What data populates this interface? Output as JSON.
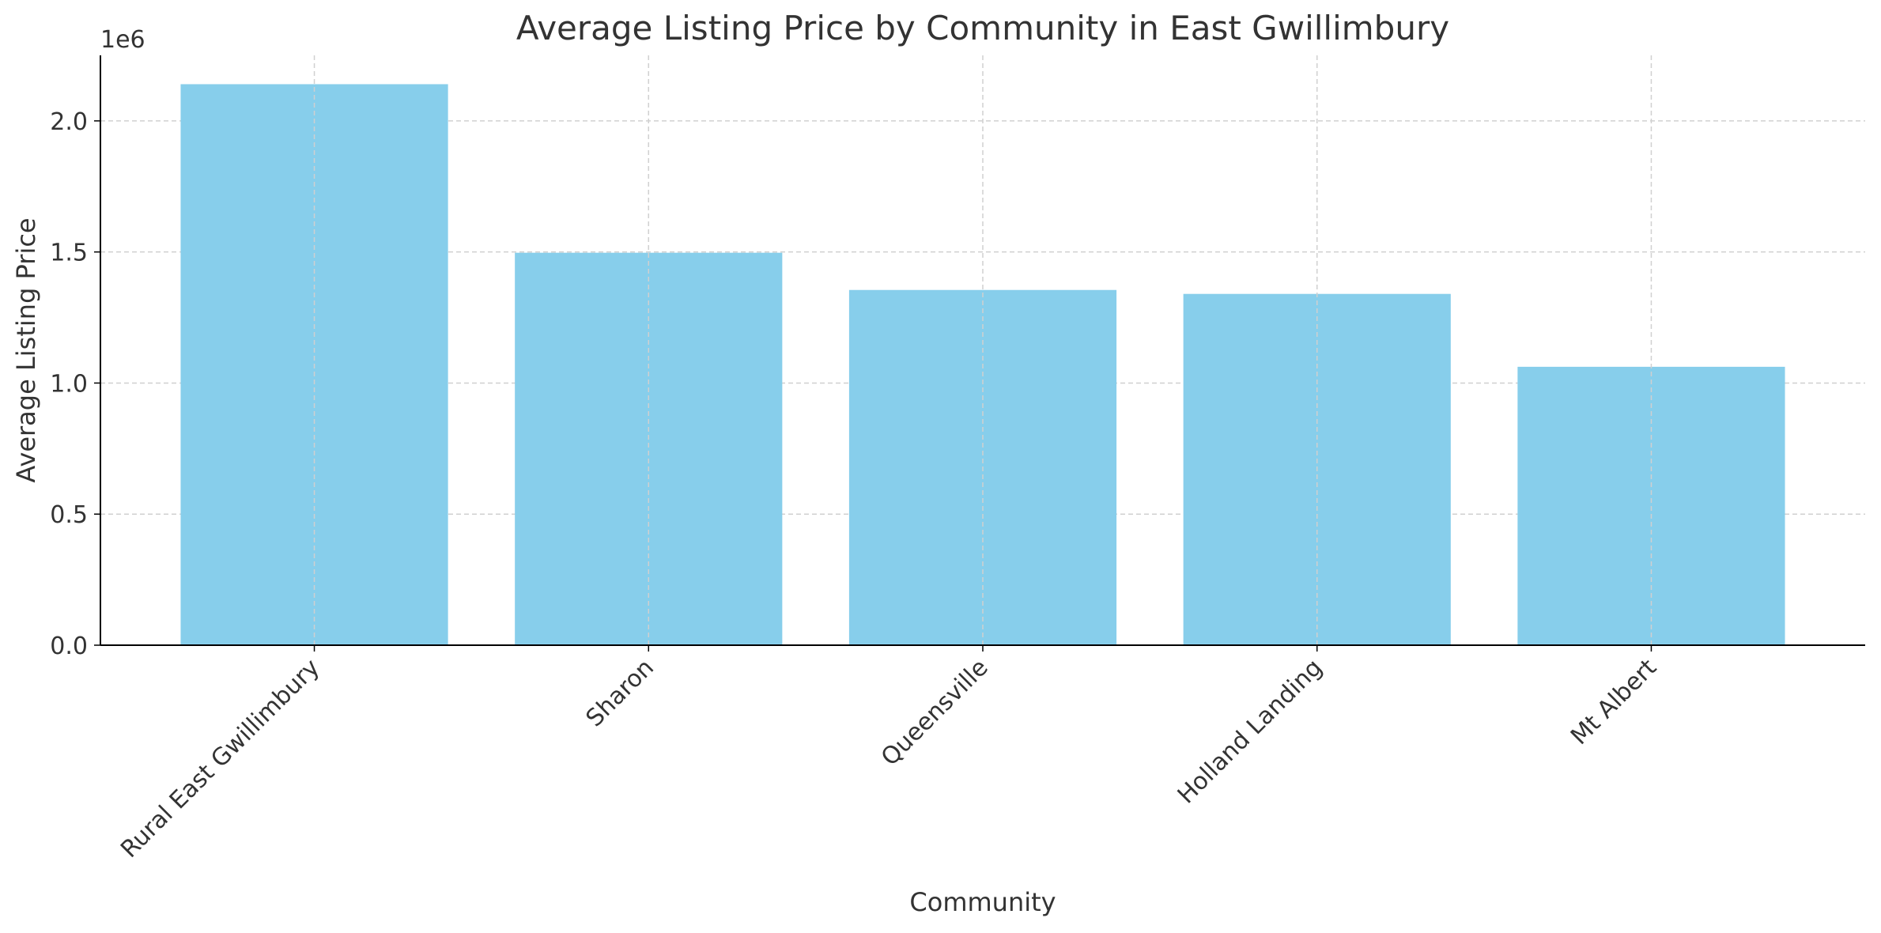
{
  "chart_data": {
    "type": "bar",
    "title": "Average Listing Price by Community in East Gwillimbury",
    "x_label": "Community",
    "y_label": "Average Listing Price",
    "y_offset_label": "1e6",
    "categories": [
      "Rural East Gwillimbury",
      "Sharon",
      "Queensville",
      "Holland Landing",
      "Mt Albert"
    ],
    "values": [
      2140000,
      1497000,
      1355000,
      1340000,
      1062000
    ],
    "color": "#87ceeb",
    "ylim": [
      0,
      2250000
    ],
    "yticks": [
      {
        "value": 0,
        "label": "0.0"
      },
      {
        "value": 500000,
        "label": "0.5"
      },
      {
        "value": 1000000,
        "label": "1.0"
      },
      {
        "value": 1500000,
        "label": "1.5"
      },
      {
        "value": 2000000,
        "label": "2.0"
      }
    ],
    "grid": true
  }
}
